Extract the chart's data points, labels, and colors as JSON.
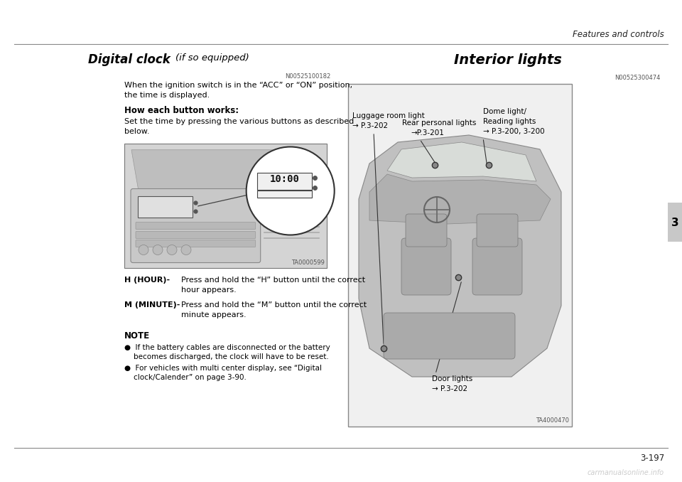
{
  "bg_color": "#ffffff",
  "page_width": 9.6,
  "page_height": 6.78,
  "top_right_text": "Features and controls",
  "bottom_right_text": "3-197",
  "tab_text": "3",
  "watermark": "carmanualsonline.info",
  "left_col": {
    "title_bold": "Digital clock ",
    "title_italic": "(if so equipped)",
    "ref1": "N00525100182",
    "para1": "When the ignition switch is in the “ACC” or “ON” position,\nthe time is displayed.",
    "subhead": "How each button works:",
    "para2": "Set the time by pressing the various buttons as described\nbelow.",
    "h_label": "H (HOUR)-",
    "h_text": "Press and hold the “H” button until the correct\nhour appears.",
    "m_label": "M (MINUTE)-",
    "m_text": "Press and hold the “M” button until the correct\nminute appears.",
    "note_head": "NOTE",
    "note1": "●  If the battery cables are disconnected or the battery\n    becomes discharged, the clock will have to be reset.",
    "note2": "●  For vehicles with multi center display, see “Digital\n    clock/Calender” on page 3-90.",
    "img_caption": "TA0000599",
    "clock_time": "10:00"
  },
  "right_col": {
    "title": "Interior lights",
    "ref": "N00525300474",
    "label1_line1": "Luggage room light",
    "label1_line2": "→ P.3-202",
    "label2_line1": "Rear personal lights",
    "label2_line2": "→P.3-201",
    "label3_line1": "Dome light/",
    "label3_line2": "Reading lights",
    "label3_line3": "→ P.3-200, 3-200",
    "label4_line1": "Door lights",
    "label4_line2": "→ P.3-202",
    "img_caption": "TA4000470"
  }
}
